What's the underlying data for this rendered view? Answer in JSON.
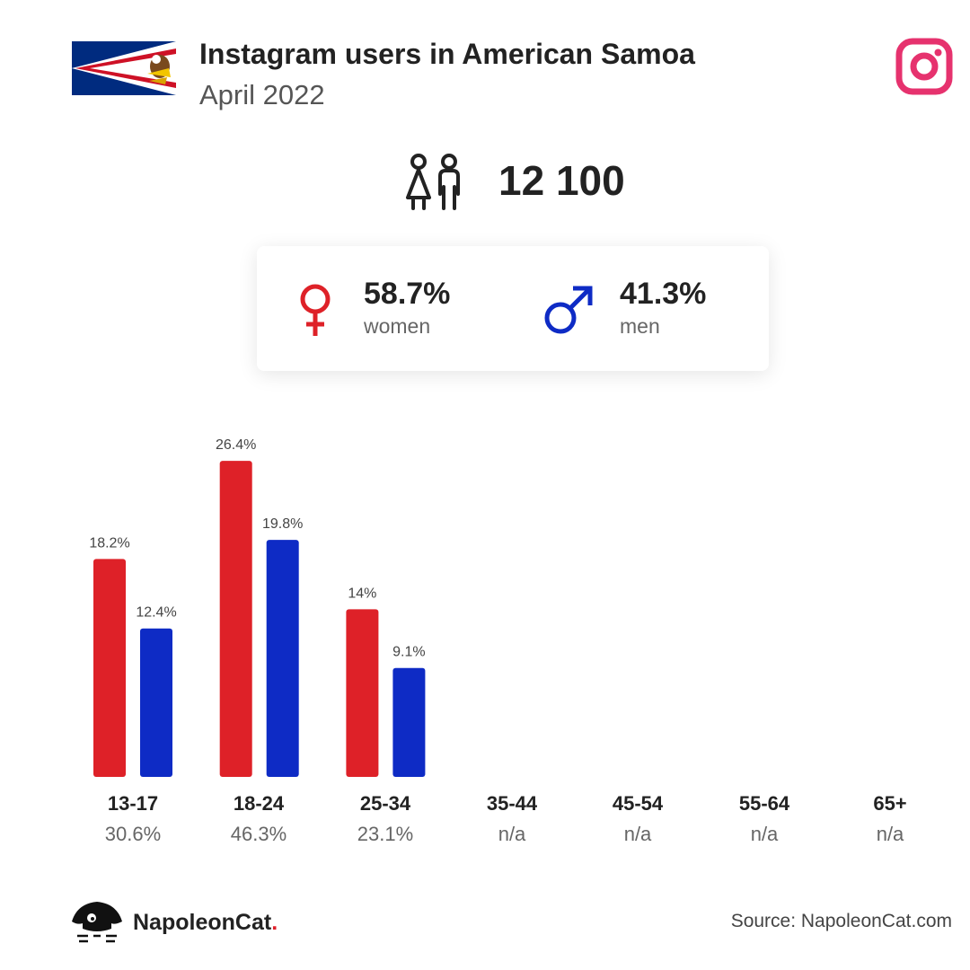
{
  "header": {
    "title": "Instagram users in American Samoa",
    "subtitle": "April 2022"
  },
  "total_users": "12 100",
  "gender": {
    "women_pct": "58.7%",
    "women_label": "women",
    "men_pct": "41.3%",
    "men_label": "men"
  },
  "colors": {
    "women": "#de2128",
    "men": "#0e2bc5",
    "instagram": "#e6326e"
  },
  "age_groups": [
    {
      "label": "13-17",
      "share": "30.6%"
    },
    {
      "label": "18-24",
      "share": "46.3%"
    },
    {
      "label": "25-34",
      "share": "23.1%"
    },
    {
      "label": "35-44",
      "share": "n/a"
    },
    {
      "label": "45-54",
      "share": "n/a"
    },
    {
      "label": "55-64",
      "share": "n/a"
    },
    {
      "label": "65+",
      "share": "n/a"
    }
  ],
  "chart_data": {
    "type": "bar",
    "categories": [
      "13-17",
      "18-24",
      "25-34",
      "35-44",
      "45-54",
      "55-64",
      "65+"
    ],
    "series": [
      {
        "name": "women",
        "values": [
          18.2,
          26.4,
          14,
          null,
          null,
          null,
          null
        ],
        "labels": [
          "18.2%",
          "26.4%",
          "14%",
          null,
          null,
          null,
          null
        ]
      },
      {
        "name": "men",
        "values": [
          12.4,
          19.8,
          9.1,
          null,
          null,
          null,
          null
        ],
        "labels": [
          "12.4%",
          "19.8%",
          "9.1%",
          null,
          null,
          null,
          null
        ]
      }
    ],
    "ylim": [
      0,
      28
    ]
  },
  "footer": {
    "brand": "NapoleonCat",
    "brand_dot": ".",
    "source": "Source: NapoleonCat.com"
  }
}
